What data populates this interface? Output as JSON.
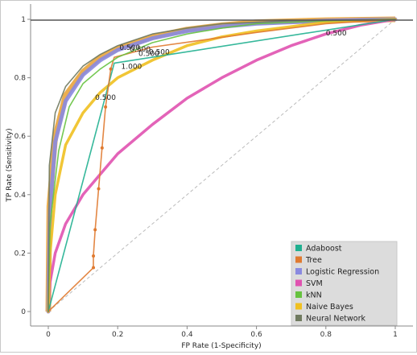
{
  "chart_data": {
    "type": "line",
    "xlabel": "FP Rate (1-Specificity)",
    "ylabel": "TP Rate (Sensitivity)",
    "xlim": [
      0,
      1
    ],
    "ylim": [
      0,
      1
    ],
    "x_ticks": [
      "0",
      "0.2",
      "0.4",
      "0.6",
      "0.8",
      "1"
    ],
    "y_ticks": [
      "0",
      "0.2",
      "0.4",
      "0.6",
      "0.8",
      "1"
    ],
    "grid": false,
    "legend_position": "bottom-right",
    "series": [
      {
        "name": "Adaboost",
        "color": "#20b090",
        "width": 1.6,
        "points": [
          [
            0,
            0
          ],
          [
            0.19,
            0.85
          ],
          [
            1,
            1
          ]
        ]
      },
      {
        "name": "Tree",
        "color": "#e07a30",
        "width": 1.6,
        "points": [
          [
            0,
            0
          ],
          [
            0.13,
            0.15
          ],
          [
            0.13,
            0.19
          ],
          [
            0.135,
            0.28
          ],
          [
            0.145,
            0.42
          ],
          [
            0.155,
            0.56
          ],
          [
            0.165,
            0.7
          ],
          [
            0.18,
            0.83
          ],
          [
            0.19,
            0.87
          ],
          [
            0.3,
            0.905
          ],
          [
            0.45,
            0.93
          ],
          [
            0.6,
            0.955
          ],
          [
            0.8,
            0.985
          ],
          [
            1,
            1
          ]
        ]
      },
      {
        "name": "Logistic Regression",
        "color": "#8a8ae0",
        "width": 5,
        "points": [
          [
            0,
            0
          ],
          [
            0.005,
            0.35
          ],
          [
            0.02,
            0.58
          ],
          [
            0.05,
            0.72
          ],
          [
            0.1,
            0.81
          ],
          [
            0.15,
            0.86
          ],
          [
            0.2,
            0.895
          ],
          [
            0.3,
            0.935
          ],
          [
            0.4,
            0.96
          ],
          [
            0.5,
            0.975
          ],
          [
            0.6,
            0.985
          ],
          [
            0.8,
            0.995
          ],
          [
            1,
            1
          ]
        ]
      },
      {
        "name": "SVM",
        "color": "#e052b0",
        "width": 3.5,
        "points": [
          [
            0,
            0
          ],
          [
            0.005,
            0.1
          ],
          [
            0.02,
            0.2
          ],
          [
            0.05,
            0.3
          ],
          [
            0.1,
            0.4
          ],
          [
            0.15,
            0.47
          ],
          [
            0.2,
            0.54
          ],
          [
            0.3,
            0.64
          ],
          [
            0.4,
            0.73
          ],
          [
            0.5,
            0.8
          ],
          [
            0.6,
            0.86
          ],
          [
            0.7,
            0.91
          ],
          [
            0.8,
            0.95
          ],
          [
            0.9,
            0.98
          ],
          [
            1,
            1
          ]
        ]
      },
      {
        "name": "kNN",
        "color": "#66c23f",
        "width": 1.6,
        "points": [
          [
            0,
            0
          ],
          [
            0.005,
            0.3
          ],
          [
            0.03,
            0.55
          ],
          [
            0.06,
            0.7
          ],
          [
            0.1,
            0.78
          ],
          [
            0.15,
            0.83
          ],
          [
            0.2,
            0.87
          ],
          [
            0.3,
            0.92
          ],
          [
            0.4,
            0.95
          ],
          [
            0.5,
            0.97
          ],
          [
            0.6,
            0.985
          ],
          [
            0.8,
            0.995
          ],
          [
            1,
            1
          ]
        ]
      },
      {
        "name": "Naive Bayes",
        "color": "#f0c020",
        "width": 3.5,
        "points": [
          [
            0,
            0
          ],
          [
            0.005,
            0.2
          ],
          [
            0.02,
            0.4
          ],
          [
            0.05,
            0.57
          ],
          [
            0.1,
            0.68
          ],
          [
            0.15,
            0.75
          ],
          [
            0.2,
            0.8
          ],
          [
            0.3,
            0.86
          ],
          [
            0.4,
            0.91
          ],
          [
            0.5,
            0.94
          ],
          [
            0.6,
            0.96
          ],
          [
            0.7,
            0.975
          ],
          [
            0.8,
            0.99
          ],
          [
            1,
            1
          ]
        ]
      },
      {
        "name": "Neural Network",
        "color": "#707a60",
        "width": 1.6,
        "points": [
          [
            0,
            0
          ],
          [
            0.003,
            0.5
          ],
          [
            0.02,
            0.68
          ],
          [
            0.05,
            0.77
          ],
          [
            0.1,
            0.84
          ],
          [
            0.15,
            0.88
          ],
          [
            0.2,
            0.91
          ],
          [
            0.3,
            0.95
          ],
          [
            0.4,
            0.97
          ],
          [
            0.5,
            0.985
          ],
          [
            0.7,
            0.995
          ],
          [
            1,
            1
          ]
        ]
      }
    ],
    "orange_band": {
      "color": "#e8a030",
      "points": [
        [
          0,
          0
        ],
        [
          0.003,
          0.36
        ],
        [
          0.02,
          0.6
        ],
        [
          0.05,
          0.74
        ],
        [
          0.1,
          0.82
        ],
        [
          0.15,
          0.87
        ],
        [
          0.2,
          0.9
        ],
        [
          0.3,
          0.94
        ],
        [
          0.4,
          0.965
        ],
        [
          0.5,
          0.98
        ],
        [
          0.6,
          0.99
        ],
        [
          0.8,
          0.997
        ],
        [
          1,
          1
        ]
      ]
    },
    "diagonal_color": "#bbbbbb",
    "threshold_labels": [
      {
        "text": "0.500",
        "x": 0.205,
        "y": 0.895
      },
      {
        "text": "0.500",
        "x": 0.235,
        "y": 0.89
      },
      {
        "text": "0.500",
        "x": 0.26,
        "y": 0.875
      },
      {
        "text": "0.500",
        "x": 0.29,
        "y": 0.88
      },
      {
        "text": "1.000",
        "x": 0.21,
        "y": 0.83
      },
      {
        "text": "0.500",
        "x": 0.135,
        "y": 0.725
      },
      {
        "text": "0.500",
        "x": 0.8,
        "y": 0.945
      }
    ]
  }
}
